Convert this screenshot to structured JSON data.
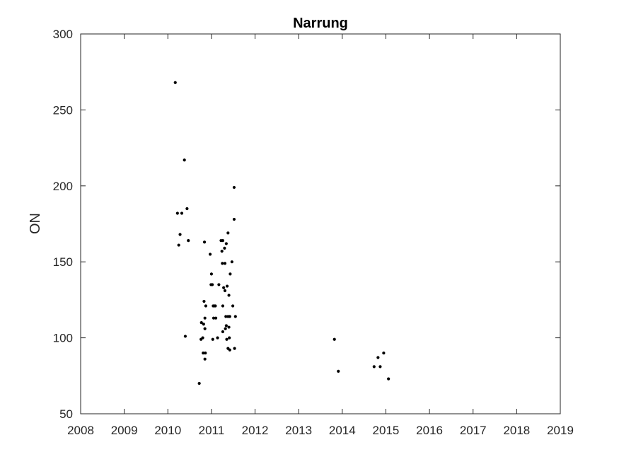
{
  "chart_data": {
    "type": "scatter",
    "title": "Narrung",
    "xlabel": "",
    "ylabel": "ON",
    "xlim": [
      2008,
      2019
    ],
    "ylim": [
      50,
      300
    ],
    "xticks": [
      "2008",
      "2009",
      "2010",
      "2011",
      "2012",
      "2013",
      "2014",
      "2015",
      "2016",
      "2017",
      "2018",
      "2019"
    ],
    "yticks": [
      "50",
      "100",
      "150",
      "200",
      "250",
      "300"
    ],
    "grid": false,
    "marker_color": "#000000",
    "points": [
      [
        2010.17,
        268
      ],
      [
        2010.38,
        217
      ],
      [
        2010.22,
        182
      ],
      [
        2010.32,
        182
      ],
      [
        2010.44,
        185
      ],
      [
        2010.28,
        168
      ],
      [
        2010.25,
        161
      ],
      [
        2010.47,
        164
      ],
      [
        2010.4,
        101
      ],
      [
        2010.72,
        70
      ],
      [
        2010.77,
        110
      ],
      [
        2010.82,
        109
      ],
      [
        2010.85,
        106
      ],
      [
        2010.8,
        100
      ],
      [
        2010.76,
        99
      ],
      [
        2010.81,
        90
      ],
      [
        2010.86,
        90
      ],
      [
        2010.85,
        86
      ],
      [
        2010.83,
        124
      ],
      [
        2010.87,
        121
      ],
      [
        2010.85,
        113
      ],
      [
        2010.84,
        163
      ],
      [
        2010.97,
        155
      ],
      [
        2011.0,
        142
      ],
      [
        2010.99,
        135
      ],
      [
        2011.02,
        135
      ],
      [
        2011.04,
        121
      ],
      [
        2011.07,
        121
      ],
      [
        2011.09,
        121
      ],
      [
        2011.05,
        113
      ],
      [
        2011.1,
        113
      ],
      [
        2011.03,
        99
      ],
      [
        2011.17,
        135
      ],
      [
        2011.14,
        100
      ],
      [
        2011.22,
        164
      ],
      [
        2011.26,
        164
      ],
      [
        2011.24,
        157
      ],
      [
        2011.3,
        159
      ],
      [
        2011.25,
        149
      ],
      [
        2011.31,
        149
      ],
      [
        2011.34,
        162
      ],
      [
        2011.38,
        169
      ],
      [
        2011.28,
        133
      ],
      [
        2011.31,
        131
      ],
      [
        2011.36,
        134
      ],
      [
        2011.4,
        128
      ],
      [
        2011.26,
        121
      ],
      [
        2011.26,
        104
      ],
      [
        2011.32,
        106
      ],
      [
        2011.34,
        108
      ],
      [
        2011.33,
        114
      ],
      [
        2011.38,
        114
      ],
      [
        2011.35,
        99
      ],
      [
        2011.41,
        100
      ],
      [
        2011.38,
        93
      ],
      [
        2011.42,
        92
      ],
      [
        2011.4,
        107
      ],
      [
        2011.42,
        114
      ],
      [
        2011.47,
        150
      ],
      [
        2011.43,
        142
      ],
      [
        2011.49,
        121
      ],
      [
        2011.55,
        114
      ],
      [
        2011.53,
        93
      ],
      [
        2011.52,
        178
      ],
      [
        2011.52,
        199
      ],
      [
        2013.82,
        99
      ],
      [
        2013.91,
        78
      ],
      [
        2014.73,
        81
      ],
      [
        2014.82,
        87
      ],
      [
        2014.87,
        81
      ],
      [
        2014.95,
        90
      ],
      [
        2015.06,
        73
      ]
    ]
  }
}
